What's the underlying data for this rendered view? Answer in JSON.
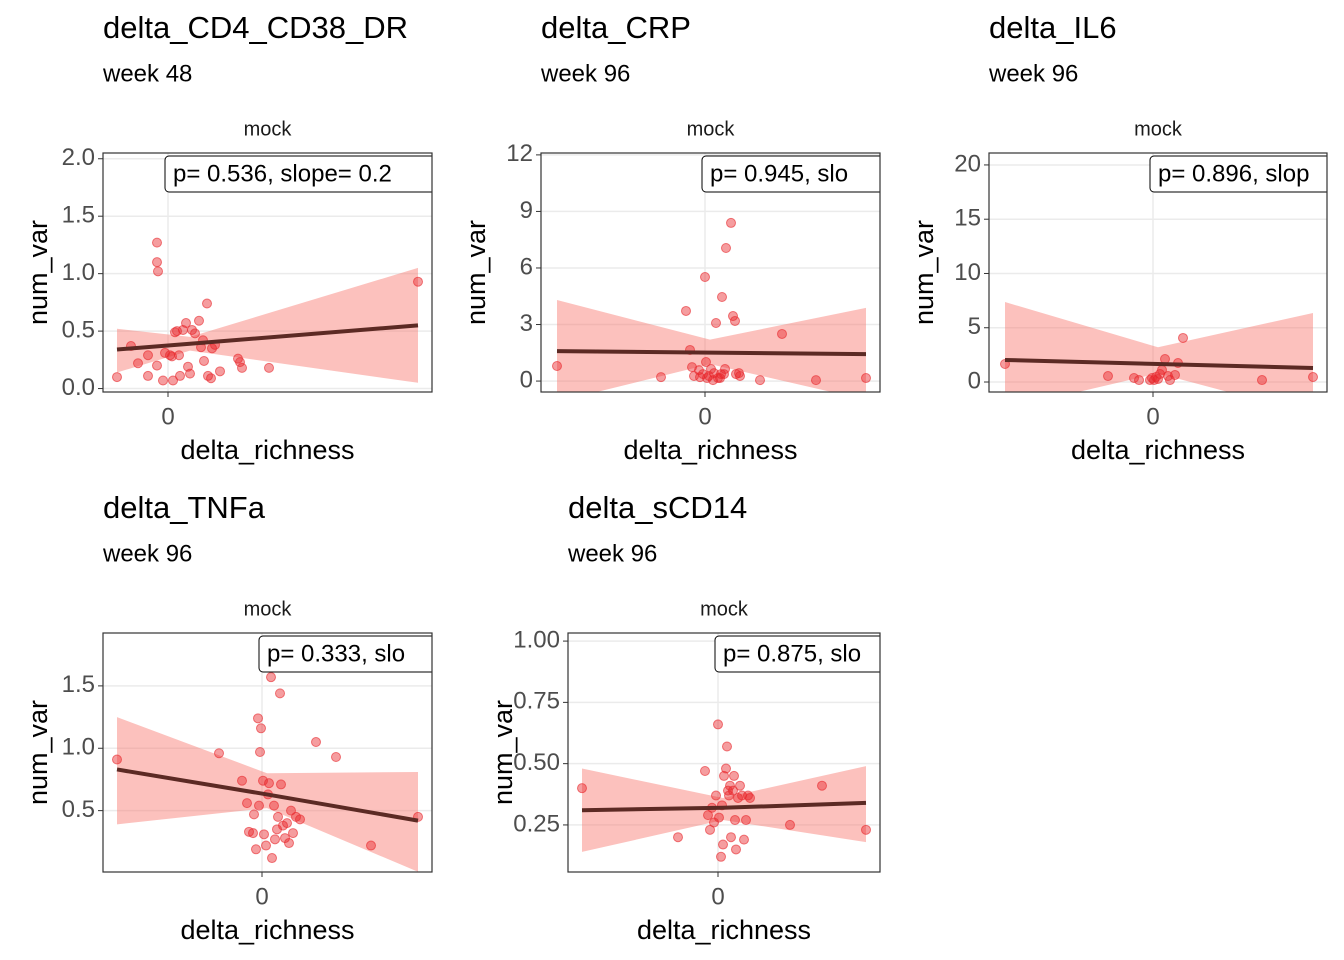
{
  "chart_data": [
    {
      "type": "scatter",
      "title": "delta_CD4_CD38_DR",
      "subtitle": "week 48",
      "facet": "mock",
      "annotation": "p= 0.536, slope= 0.2",
      "xlabel": "delta_richness",
      "ylabel": "num_var",
      "color": "#e8262b",
      "grid": true,
      "xlim": [
        -6.5,
        26.4
      ],
      "ylim": [
        -0.03,
        2.05
      ],
      "xticks": [
        0
      ],
      "yticks": [
        {
          "value": 0,
          "label": "0.0"
        },
        0.5,
        {
          "value": 1,
          "label": "1.0"
        },
        1.5,
        {
          "value": 2,
          "label": "2.0"
        }
      ],
      "x": [
        -5.1,
        -3.7,
        -3.0,
        -2.0,
        -2.0,
        -1.1,
        -1.1,
        -1.0,
        -1.1,
        -0.5,
        -0.3,
        0.2,
        0.4,
        0.5,
        0.7,
        0.9,
        1.1,
        1.2,
        1.5,
        1.8,
        2.0,
        2.2,
        2.4,
        2.7,
        3.1,
        3.3,
        3.5,
        3.6,
        3.9,
        4.0,
        4.3,
        4.4,
        4.7,
        5.2,
        7.0,
        7.2,
        7.4,
        10.1,
        25.0
      ],
      "y": [
        0.1,
        0.37,
        0.22,
        0.29,
        0.11,
        1.1,
        1.27,
        1.02,
        0.2,
        0.07,
        0.31,
        0.29,
        0.28,
        0.07,
        0.49,
        0.5,
        0.29,
        0.11,
        0.51,
        0.57,
        0.19,
        0.13,
        0.51,
        0.48,
        0.59,
        0.36,
        0.42,
        0.24,
        0.74,
        0.11,
        0.09,
        0.35,
        0.38,
        0.15,
        0.26,
        0.23,
        0.18,
        0.18,
        0.93
      ],
      "fit": {
        "x": [
          -5.1,
          2.2,
          25.0
        ],
        "y": [
          0.34,
          0.39,
          0.55
        ],
        "lower": [
          0.14,
          0.33,
          0.05
        ],
        "upper": [
          0.52,
          0.45,
          1.05
        ],
        "line_color": "#5c2a24",
        "band_color": "#f8766d"
      }
    },
    {
      "type": "scatter",
      "title": "delta_CRP",
      "subtitle": "week 96",
      "facet": "mock",
      "annotation": "p= 0.945, slo",
      "xlabel": "delta_richness",
      "ylabel": "num_var",
      "color": "#e8262b",
      "grid": true,
      "xlim": [
        -16.4,
        17.5
      ],
      "ylim": [
        -0.58,
        12.1
      ],
      "xticks": [
        0
      ],
      "yticks": [
        0,
        3,
        6,
        9,
        12
      ],
      "x": [
        -14.8,
        -4.4,
        -1.9,
        -1.5,
        -1.3,
        -1.1,
        -0.6,
        -0.5,
        -0.2,
        0.0,
        0.1,
        0.2,
        0.4,
        0.6,
        0.8,
        0.9,
        1.1,
        1.3,
        1.5,
        1.6,
        1.7,
        1.9,
        2.0,
        2.1,
        2.6,
        2.8,
        3.0,
        3.1,
        3.4,
        3.5,
        5.5,
        7.7,
        11.1,
        16.1
      ],
      "y": [
        0.8,
        0.21,
        3.72,
        1.65,
        0.74,
        0.27,
        0.58,
        0.21,
        0.37,
        5.52,
        1.01,
        0.16,
        0.27,
        0.64,
        0.05,
        0.42,
        3.08,
        0.16,
        0.16,
        0.37,
        4.46,
        0.37,
        0.64,
        7.06,
        8.39,
        3.45,
        3.19,
        0.37,
        0.42,
        0.27,
        0.05,
        2.5,
        0.05,
        0.16
      ],
      "fit": {
        "x": [
          -14.8,
          0.5,
          16.1
        ],
        "y": [
          1.59,
          1.51,
          1.43
        ],
        "lower": [
          -1.1,
          0.9,
          -1.0
        ],
        "upper": [
          4.3,
          2.2,
          3.88
        ],
        "line_color": "#5c2a24",
        "band_color": "#f8766d"
      }
    },
    {
      "type": "scatter",
      "title": "delta_IL6",
      "subtitle": "week 96",
      "facet": "mock",
      "annotation": "p= 0.896, slop",
      "xlabel": "delta_richness",
      "ylabel": "num_var",
      "color": "#e8262b",
      "grid": true,
      "xlim": [
        -16.4,
        17.4
      ],
      "ylim": [
        -0.92,
        21.1
      ],
      "xticks": [
        0
      ],
      "yticks": [
        0,
        5,
        10,
        15,
        20
      ],
      "x": [
        -14.8,
        -4.5,
        -1.9,
        -1.4,
        -0.3,
        -0.1,
        0.1,
        0.3,
        0.5,
        0.7,
        0.9,
        1.2,
        1.5,
        1.7,
        2.2,
        2.5,
        3.0,
        10.9,
        16.0
      ],
      "y": [
        1.66,
        0.55,
        0.37,
        0.18,
        0.18,
        0.37,
        0.18,
        0.46,
        0.28,
        0.74,
        1.11,
        2.12,
        0.55,
        0.18,
        0.65,
        1.75,
        4.06,
        0.18,
        0.46
      ],
      "fit": {
        "x": [
          -14.8,
          0.5,
          16.0
        ],
        "y": [
          2.03,
          1.66,
          1.29
        ],
        "lower": [
          -2.5,
          0.8,
          -3.0
        ],
        "upper": [
          7.37,
          3.2,
          6.36
        ],
        "line_color": "#5c2a24",
        "band_color": "#f8766d"
      }
    },
    {
      "type": "scatter",
      "title": "delta_TNFa",
      "subtitle": "week 96",
      "facet": "mock",
      "annotation": "p= 0.333, slo",
      "xlabel": "delta_richness",
      "ylabel": "num_var",
      "color": "#e8262b",
      "grid": true,
      "xlim": [
        -15.9,
        17.0
      ],
      "ylim": [
        0.008,
        1.924
      ],
      "xticks": [
        0
      ],
      "yticks": [
        0.5,
        {
          "value": 1,
          "label": "1.0"
        },
        1.5
      ],
      "x": [
        -14.5,
        -4.3,
        -2.0,
        -1.5,
        -1.3,
        -0.9,
        -0.8,
        -0.6,
        -0.4,
        -0.3,
        -0.2,
        -0.1,
        0.1,
        0.2,
        0.4,
        0.6,
        0.7,
        0.9,
        1.0,
        1.2,
        1.3,
        1.5,
        1.6,
        1.8,
        1.9,
        2.1,
        2.3,
        2.5,
        2.7,
        2.9,
        3.1,
        3.4,
        3.8,
        5.4,
        7.4,
        10.9,
        15.6
      ],
      "y": [
        0.91,
        0.96,
        0.74,
        0.56,
        0.33,
        0.32,
        0.47,
        0.19,
        1.24,
        0.54,
        0.97,
        1.16,
        0.74,
        0.31,
        0.22,
        0.63,
        0.72,
        1.57,
        0.12,
        0.54,
        0.27,
        0.35,
        0.45,
        1.44,
        0.71,
        0.38,
        0.28,
        0.4,
        0.24,
        0.5,
        0.32,
        0.45,
        0.43,
        1.05,
        0.93,
        0.22,
        0.45
      ],
      "fit": {
        "x": [
          -14.5,
          0.5,
          15.6
        ],
        "y": [
          0.83,
          0.63,
          0.42
        ],
        "lower": [
          0.39,
          0.52,
          0.01
        ],
        "upper": [
          1.25,
          0.8,
          0.81
        ],
        "line_color": "#5c2a24",
        "band_color": "#f8766d"
      }
    },
    {
      "type": "scatter",
      "title": "delta_sCD14",
      "subtitle": "week 96",
      "facet": "mock",
      "annotation": "p= 0.875, slo",
      "xlabel": "delta_richness",
      "ylabel": "num_var",
      "color": "#e8262b",
      "grid": true,
      "xlim": [
        -15.0,
        16.2
      ],
      "ylim": [
        0.058,
        1.033
      ],
      "xticks": [
        0
      ],
      "yticks": [
        0.25,
        {
          "value": 0.5,
          "label": "0.50"
        },
        0.75,
        {
          "value": 1,
          "label": "1.00"
        }
      ],
      "x": [
        -13.6,
        -4.0,
        -1.3,
        -1.0,
        -0.8,
        -0.6,
        -0.4,
        -0.2,
        0.0,
        0.1,
        0.3,
        0.4,
        0.5,
        0.6,
        0.8,
        0.9,
        1.0,
        1.1,
        1.2,
        1.3,
        1.5,
        1.6,
        1.7,
        1.8,
        2.0,
        2.2,
        2.4,
        2.6,
        2.8,
        3.0,
        3.2,
        7.2,
        10.4,
        14.8
      ],
      "y": [
        0.4,
        0.2,
        0.47,
        0.29,
        0.23,
        0.32,
        0.26,
        0.37,
        0.66,
        0.28,
        0.12,
        0.33,
        0.17,
        0.45,
        0.48,
        0.57,
        0.39,
        0.37,
        0.41,
        0.2,
        0.39,
        0.45,
        0.27,
        0.15,
        0.36,
        0.41,
        0.37,
        0.19,
        0.27,
        0.37,
        0.36,
        0.25,
        0.41,
        0.23
      ],
      "fit": {
        "x": [
          -13.6,
          0.5,
          14.8
        ],
        "y": [
          0.31,
          0.32,
          0.34
        ],
        "lower": [
          0.14,
          0.27,
          0.18
        ],
        "upper": [
          0.48,
          0.36,
          0.49
        ],
        "line_color": "#5c2a24",
        "band_color": "#f8766d"
      }
    }
  ]
}
